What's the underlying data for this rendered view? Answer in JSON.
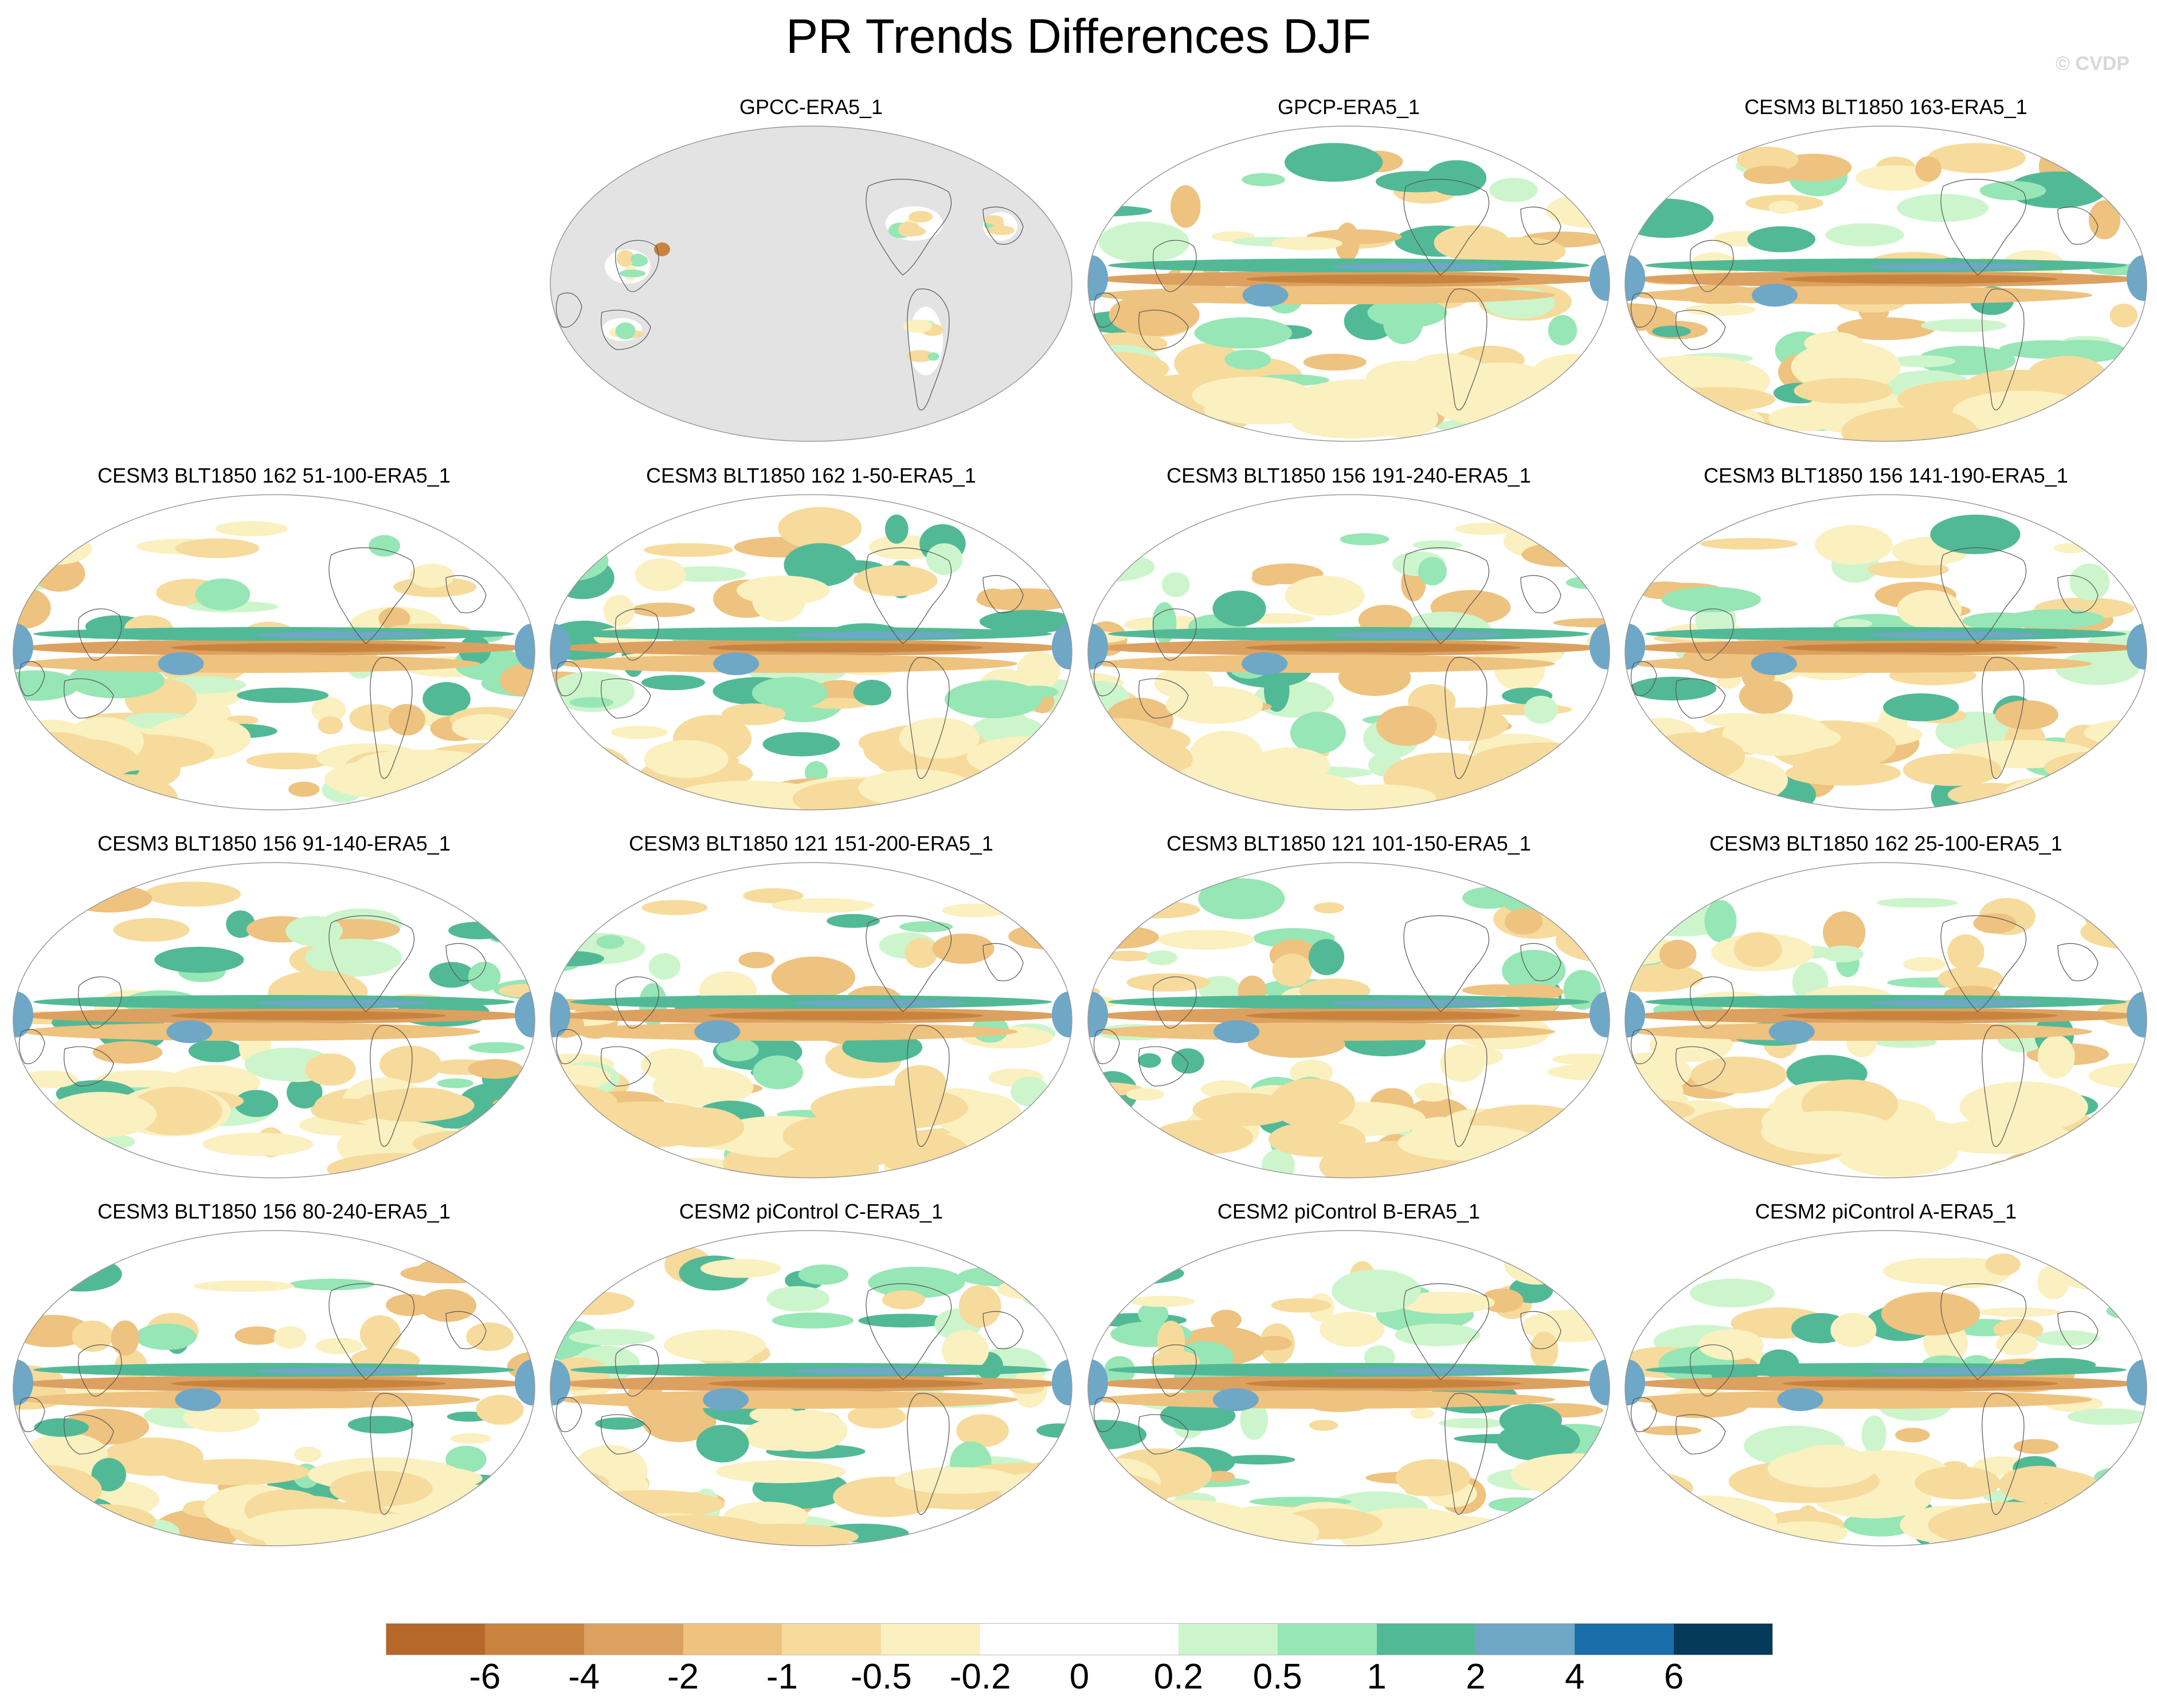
{
  "title": "PR Trends Differences DJF",
  "credit": "© CVDP",
  "panels": [
    {
      "label": "GPCC-ERA5_1",
      "masked": true,
      "row": 0,
      "col": 1,
      "seed": 3
    },
    {
      "label": "GPCP-ERA5_1",
      "masked": false,
      "row": 0,
      "col": 2,
      "seed": 11
    },
    {
      "label": "CESM3 BLT1850 163-ERA5_1",
      "masked": false,
      "row": 0,
      "col": 3,
      "seed": 17
    },
    {
      "label": "CESM3 BLT1850 162 51-100-ERA5_1",
      "masked": false,
      "row": 1,
      "col": 0,
      "seed": 23
    },
    {
      "label": "CESM3 BLT1850 162 1-50-ERA5_1",
      "masked": false,
      "row": 1,
      "col": 1,
      "seed": 29
    },
    {
      "label": "CESM3 BLT1850 156 191-240-ERA5_1",
      "masked": false,
      "row": 1,
      "col": 2,
      "seed": 31
    },
    {
      "label": "CESM3 BLT1850 156 141-190-ERA5_1",
      "masked": false,
      "row": 1,
      "col": 3,
      "seed": 37
    },
    {
      "label": "CESM3 BLT1850 156 91-140-ERA5_1",
      "masked": false,
      "row": 2,
      "col": 0,
      "seed": 41
    },
    {
      "label": "CESM3 BLT1850 121 151-200-ERA5_1",
      "masked": false,
      "row": 2,
      "col": 1,
      "seed": 43
    },
    {
      "label": "CESM3 BLT1850 121 101-150-ERA5_1",
      "masked": false,
      "row": 2,
      "col": 2,
      "seed": 47
    },
    {
      "label": "CESM3 BLT1850 162 25-100-ERA5_1",
      "masked": false,
      "row": 2,
      "col": 3,
      "seed": 53
    },
    {
      "label": "CESM3 BLT1850 156 80-240-ERA5_1",
      "masked": false,
      "row": 3,
      "col": 0,
      "seed": 59
    },
    {
      "label": "CESM2 piControl C-ERA5_1",
      "masked": false,
      "row": 3,
      "col": 1,
      "seed": 61
    },
    {
      "label": "CESM2 piControl B-ERA5_1",
      "masked": false,
      "row": 3,
      "col": 2,
      "seed": 67
    },
    {
      "label": "CESM2 piControl A-ERA5_1",
      "masked": false,
      "row": 3,
      "col": 3,
      "seed": 71
    }
  ],
  "colorbar": {
    "levels": [
      "-6",
      "-4",
      "-2",
      "-1",
      "-0.5",
      "-0.2",
      "0",
      "0.2",
      "0.5",
      "1",
      "2",
      "4",
      "6"
    ],
    "colors": [
      "#b5682a",
      "#c8843f",
      "#dca160",
      "#eec27f",
      "#f6db9c",
      "#fbf0bf",
      "#ffffff",
      "#ffffff",
      "#cdf5cc",
      "#97e6b5",
      "#52b997",
      "#6fa7c6",
      "#1a6fab",
      "#063a5a"
    ]
  }
}
